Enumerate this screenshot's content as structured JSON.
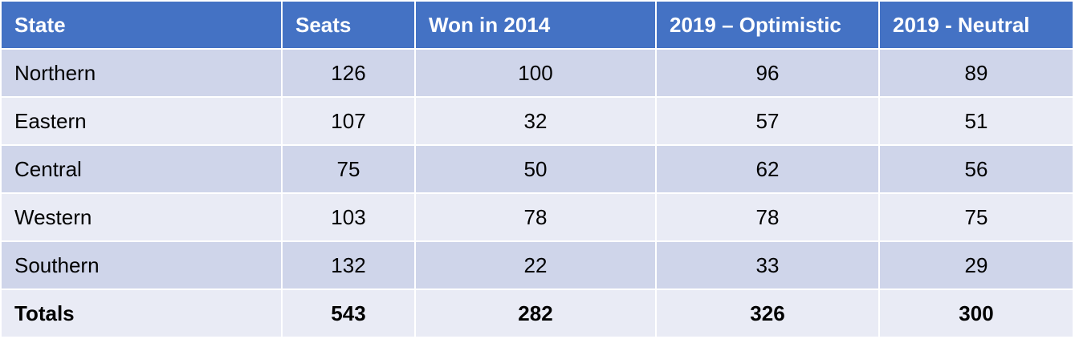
{
  "table": {
    "header": [
      "State",
      "Seats",
      "Won in 2014",
      "2019 – Optimistic",
      "2019 - Neutral"
    ],
    "rows": [
      [
        "Northern",
        126,
        100,
        96,
        89
      ],
      [
        "Eastern",
        107,
        32,
        57,
        51
      ],
      [
        "Central",
        75,
        50,
        62,
        56
      ],
      [
        "Western",
        103,
        78,
        78,
        75
      ],
      [
        "Southern",
        132,
        22,
        33,
        29
      ]
    ],
    "totals": [
      "Totals",
      543,
      282,
      326,
      300
    ]
  }
}
